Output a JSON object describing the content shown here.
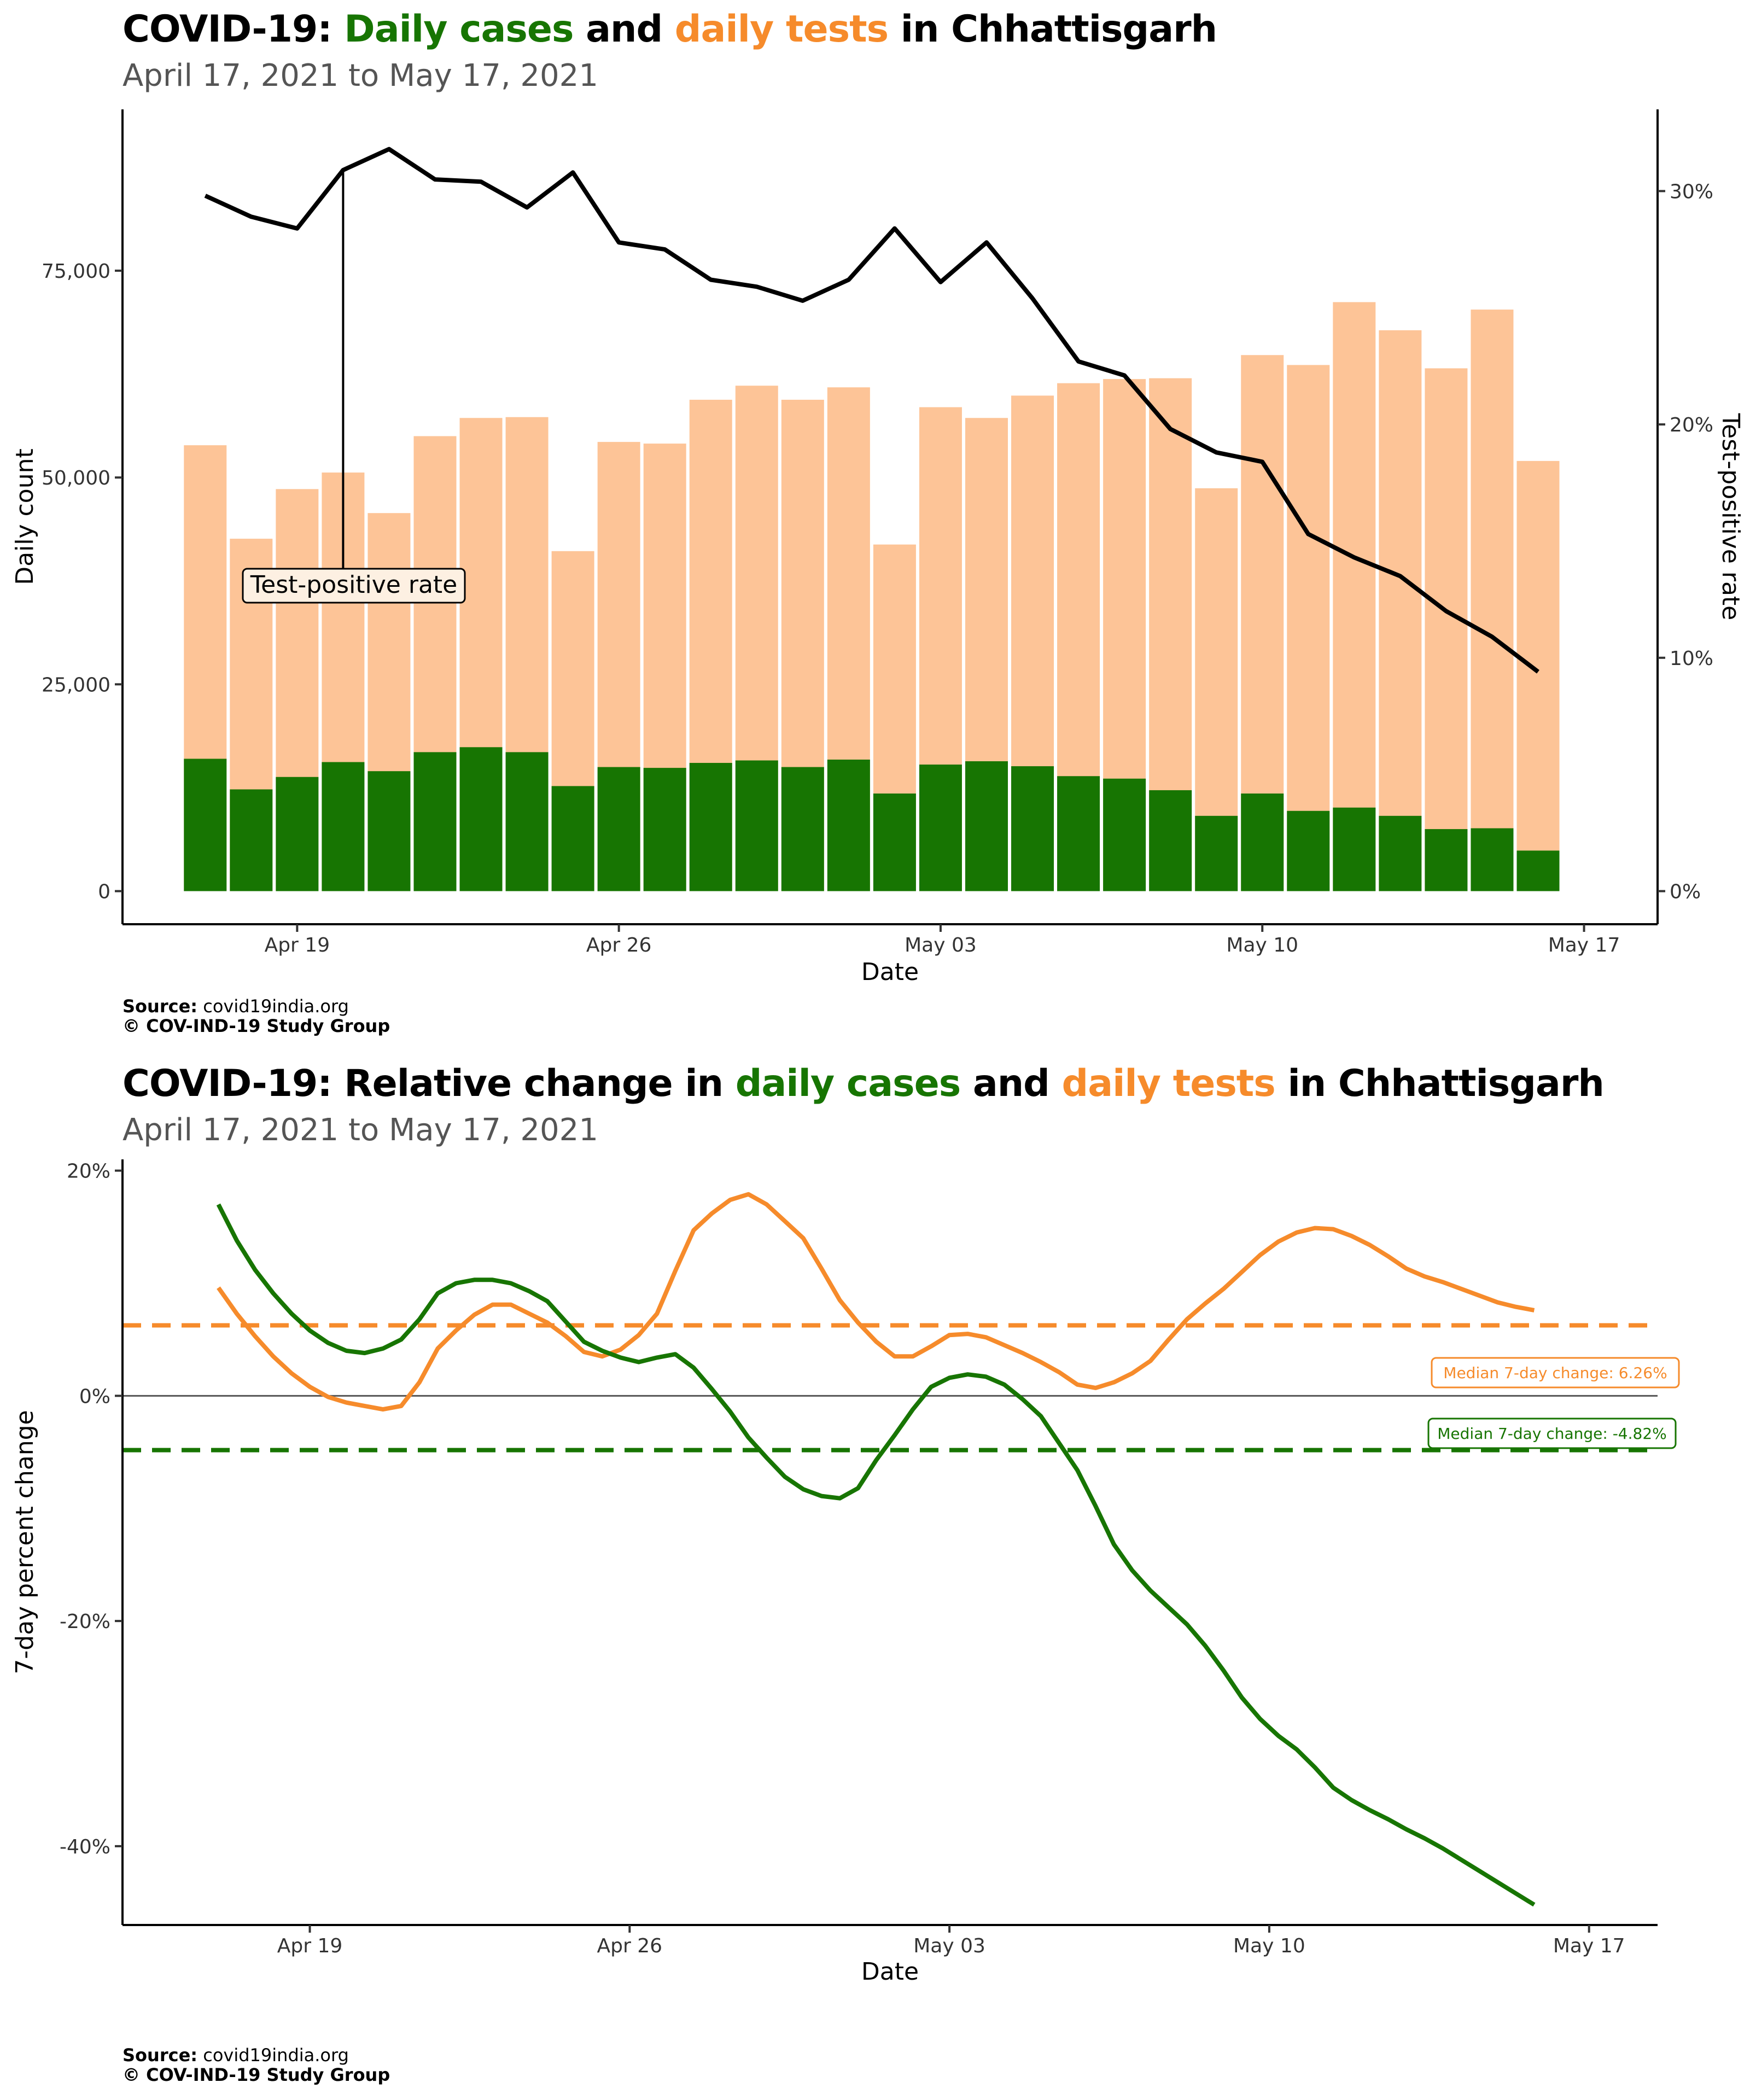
{
  "colors": {
    "cases": "#177502",
    "tests": "#F68B2B",
    "tests_bar": "#FDC497",
    "tpr_line": "#000000"
  },
  "panel1": {
    "title_prefix": "COVID-19: ",
    "title_cases": "Daily cases",
    "title_and": " and ",
    "title_tests": "daily tests",
    "title_suffix": " in Chhattisgarh",
    "subtitle": "April 17, 2021 to May 17, 2021",
    "source_label": "Source:",
    "source_value": " covid19india.org",
    "copyright": "© COV-IND-19 Study Group"
  },
  "panel2": {
    "title_prefix": "COVID-19: Relative change in ",
    "title_cases": "daily cases",
    "title_and": " and ",
    "title_tests": "daily tests",
    "title_suffix": " in Chhattisgarh",
    "subtitle": "April 17, 2021 to May 17, 2021",
    "source_label": "Source:",
    "source_value": " covid19india.org",
    "copyright": "© COV-IND-19 Study Group"
  },
  "chart_data": [
    {
      "type": "bar",
      "xlabel": "Date",
      "ylabel": "Daily count",
      "y2label": "Test-positive rate",
      "ylim": [
        -4000,
        94500
      ],
      "y_ticks": [
        0,
        25000,
        50000,
        75000
      ],
      "y_tick_labels": [
        "0",
        "25,000",
        "50,000",
        "75,000"
      ],
      "y2_ticks": [
        0,
        10,
        20,
        30
      ],
      "y2_tick_labels": [
        "0%",
        "10%",
        "20%",
        "30%"
      ],
      "x_ticks": [
        "2021-04-19",
        "2021-04-26",
        "2021-05-03",
        "2021-05-10",
        "2021-05-17"
      ],
      "x_tick_labels": [
        "Apr 19",
        "Apr 26",
        "May 03",
        "May 10",
        "May 17"
      ],
      "dates": [
        "2021-04-17",
        "2021-04-18",
        "2021-04-19",
        "2021-04-20",
        "2021-04-21",
        "2021-04-22",
        "2021-04-23",
        "2021-04-24",
        "2021-04-25",
        "2021-04-26",
        "2021-04-27",
        "2021-04-28",
        "2021-04-29",
        "2021-04-30",
        "2021-05-01",
        "2021-05-02",
        "2021-05-03",
        "2021-05-04",
        "2021-05-05",
        "2021-05-06",
        "2021-05-07",
        "2021-05-08",
        "2021-05-09",
        "2021-05-10",
        "2021-05-11",
        "2021-05-12",
        "2021-05-13",
        "2021-05-14",
        "2021-05-15",
        "2021-05-16",
        "2021-05-17"
      ],
      "series": [
        {
          "name": "Daily tests",
          "values": [
            53900,
            42600,
            48600,
            50600,
            45700,
            55000,
            57200,
            57300,
            41100,
            54300,
            54100,
            59400,
            61100,
            59400,
            60900,
            41900,
            58500,
            57200,
            59900,
            61400,
            61900,
            62000,
            48700,
            64800,
            63600,
            71200,
            67800,
            63200,
            70300,
            52000,
            null
          ]
        },
        {
          "name": "Daily cases",
          "values": [
            16000,
            12300,
            13800,
            15600,
            14500,
            16800,
            17400,
            16800,
            12700,
            15000,
            14900,
            15500,
            15800,
            15000,
            15900,
            11800,
            15300,
            15700,
            15100,
            13900,
            13600,
            12200,
            9100,
            11800,
            9700,
            10100,
            9100,
            7500,
            7600,
            4900,
            null
          ]
        },
        {
          "name": "Test-positive rate",
          "values": [
            29.8,
            28.9,
            28.4,
            30.9,
            31.8,
            30.5,
            30.4,
            29.3,
            30.8,
            27.8,
            27.5,
            26.2,
            25.9,
            25.3,
            26.2,
            28.4,
            26.1,
            27.8,
            25.4,
            22.7,
            22.1,
            19.8,
            18.8,
            18.4,
            15.3,
            14.3,
            13.5,
            12.0,
            10.9,
            9.4,
            null
          ]
        }
      ],
      "annotation": "Test-positive rate",
      "annotation_date": "2021-04-20"
    },
    {
      "type": "line",
      "xlabel": "Date",
      "ylabel": "7-day percent change",
      "ylim": [
        -47,
        21
      ],
      "y_ticks": [
        -40,
        -20,
        0,
        20
      ],
      "y_tick_labels": [
        "-40%",
        "-20%",
        "0%",
        "20%"
      ],
      "x_ticks": [
        "2021-04-19",
        "2021-04-26",
        "2021-05-03",
        "2021-05-10",
        "2021-05-17"
      ],
      "x_tick_labels": [
        "Apr 19",
        "Apr 26",
        "May 03",
        "May 10",
        "May 17"
      ],
      "series": [
        {
          "name": "Daily tests",
          "points": [
            [
              "2021-04-17",
              9.6
            ],
            [
              "2021-04-17.4",
              7.3
            ],
            [
              "2021-04-17.8",
              5.3
            ],
            [
              "2021-04-18.2",
              3.5
            ],
            [
              "2021-04-18.6",
              2.0
            ],
            [
              "2021-04-19",
              0.8
            ],
            [
              "2021-04-19.4",
              -0.1
            ],
            [
              "2021-04-19.8",
              -0.6
            ],
            [
              "2021-04-20.2",
              -0.9
            ],
            [
              "2021-04-20.6",
              -1.2
            ],
            [
              "2021-04-21",
              -0.9
            ],
            [
              "2021-04-21.4",
              1.2
            ],
            [
              "2021-04-21.8",
              4.2
            ],
            [
              "2021-04-22.2",
              5.8
            ],
            [
              "2021-04-22.6",
              7.2
            ],
            [
              "2021-04-23",
              8.1
            ],
            [
              "2021-04-23.4",
              8.1
            ],
            [
              "2021-04-23.8",
              7.3
            ],
            [
              "2021-04-24.2",
              6.5
            ],
            [
              "2021-04-24.6",
              5.3
            ],
            [
              "2021-04-25",
              3.9
            ],
            [
              "2021-04-25.4",
              3.5
            ],
            [
              "2021-04-25.8",
              4.1
            ],
            [
              "2021-04-26.2",
              5.4
            ],
            [
              "2021-04-26.6",
              7.3
            ],
            [
              "2021-04-27",
              11.1
            ],
            [
              "2021-04-27.4",
              14.7
            ],
            [
              "2021-04-27.8",
              16.2
            ],
            [
              "2021-04-28.2",
              17.4
            ],
            [
              "2021-04-28.6",
              17.9
            ],
            [
              "2021-04-29",
              17.0
            ],
            [
              "2021-04-29.4",
              15.5
            ],
            [
              "2021-04-29.8",
              14.0
            ],
            [
              "2021-04-30.2",
              11.3
            ],
            [
              "2021-04-30.6",
              8.5
            ],
            [
              "2021-05-01",
              6.5
            ],
            [
              "2021-05-01.4",
              4.8
            ],
            [
              "2021-05-01.8",
              3.5
            ],
            [
              "2021-05-02.2",
              3.5
            ],
            [
              "2021-05-02.6",
              4.4
            ],
            [
              "2021-05-03",
              5.4
            ],
            [
              "2021-05-03.4",
              5.5
            ],
            [
              "2021-05-03.8",
              5.2
            ],
            [
              "2021-05-04.2",
              4.5
            ],
            [
              "2021-05-04.6",
              3.8
            ],
            [
              "2021-05-05",
              3.0
            ],
            [
              "2021-05-05.4",
              2.1
            ],
            [
              "2021-05-05.8",
              1.0
            ],
            [
              "2021-05-06.2",
              0.7
            ],
            [
              "2021-05-06.6",
              1.2
            ],
            [
              "2021-05-07",
              2.0
            ],
            [
              "2021-05-07.4",
              3.1
            ],
            [
              "2021-05-07.8",
              5.0
            ],
            [
              "2021-05-08.2",
              6.8
            ],
            [
              "2021-05-08.6",
              8.2
            ],
            [
              "2021-05-09",
              9.5
            ],
            [
              "2021-05-09.4",
              11.0
            ],
            [
              "2021-05-09.8",
              12.5
            ],
            [
              "2021-05-10.2",
              13.7
            ],
            [
              "2021-05-10.6",
              14.5
            ],
            [
              "2021-05-11",
              14.9
            ],
            [
              "2021-05-11.4",
              14.8
            ],
            [
              "2021-05-11.8",
              14.2
            ],
            [
              "2021-05-12.2",
              13.4
            ],
            [
              "2021-05-12.6",
              12.4
            ],
            [
              "2021-05-13",
              11.3
            ],
            [
              "2021-05-13.4",
              10.6
            ],
            [
              "2021-05-13.8",
              10.1
            ],
            [
              "2021-05-14.2",
              9.5
            ],
            [
              "2021-05-14.6",
              8.9
            ],
            [
              "2021-05-15",
              8.3
            ],
            [
              "2021-05-15.4",
              7.9
            ],
            [
              "2021-05-15.8",
              7.6
            ]
          ]
        },
        {
          "name": "Daily cases",
          "points": [
            [
              "2021-04-17",
              17.0
            ],
            [
              "2021-04-17.4",
              13.8
            ],
            [
              "2021-04-17.8",
              11.2
            ],
            [
              "2021-04-18.2",
              9.1
            ],
            [
              "2021-04-18.6",
              7.3
            ],
            [
              "2021-04-19",
              5.8
            ],
            [
              "2021-04-19.4",
              4.7
            ],
            [
              "2021-04-19.8",
              4.0
            ],
            [
              "2021-04-20.2",
              3.8
            ],
            [
              "2021-04-20.6",
              4.2
            ],
            [
              "2021-04-21",
              5.0
            ],
            [
              "2021-04-21.4",
              6.8
            ],
            [
              "2021-04-21.8",
              9.1
            ],
            [
              "2021-04-22.2",
              10.0
            ],
            [
              "2021-04-22.6",
              10.3
            ],
            [
              "2021-04-23",
              10.3
            ],
            [
              "2021-04-23.4",
              10.0
            ],
            [
              "2021-04-23.8",
              9.3
            ],
            [
              "2021-04-24.2",
              8.4
            ],
            [
              "2021-04-24.6",
              6.6
            ],
            [
              "2021-04-25",
              4.8
            ],
            [
              "2021-04-25.4",
              4.0
            ],
            [
              "2021-04-25.8",
              3.4
            ],
            [
              "2021-04-26.2",
              3.0
            ],
            [
              "2021-04-26.6",
              3.4
            ],
            [
              "2021-04-27",
              3.7
            ],
            [
              "2021-04-27.4",
              2.5
            ],
            [
              "2021-04-27.8",
              0.6
            ],
            [
              "2021-04-28.2",
              -1.4
            ],
            [
              "2021-04-28.6",
              -3.7
            ],
            [
              "2021-04-29",
              -5.5
            ],
            [
              "2021-04-29.4",
              -7.2
            ],
            [
              "2021-04-29.8",
              -8.3
            ],
            [
              "2021-04-30.2",
              -8.9
            ],
            [
              "2021-04-30.6",
              -9.1
            ],
            [
              "2021-05-01",
              -8.2
            ],
            [
              "2021-05-01.4",
              -5.7
            ],
            [
              "2021-05-01.8",
              -3.5
            ],
            [
              "2021-05-02.2",
              -1.2
            ],
            [
              "2021-05-02.6",
              0.8
            ],
            [
              "2021-05-03",
              1.6
            ],
            [
              "2021-05-03.4",
              1.9
            ],
            [
              "2021-05-03.8",
              1.7
            ],
            [
              "2021-05-04.2",
              1.0
            ],
            [
              "2021-05-04.6",
              -0.3
            ],
            [
              "2021-05-05",
              -1.8
            ],
            [
              "2021-05-05.4",
              -4.2
            ],
            [
              "2021-05-05.8",
              -6.6
            ],
            [
              "2021-05-06.2",
              -9.8
            ],
            [
              "2021-05-06.6",
              -13.2
            ],
            [
              "2021-05-07",
              -15.5
            ],
            [
              "2021-05-07.4",
              -17.3
            ],
            [
              "2021-05-07.8",
              -18.8
            ],
            [
              "2021-05-08.2",
              -20.3
            ],
            [
              "2021-05-08.6",
              -22.2
            ],
            [
              "2021-05-09",
              -24.4
            ],
            [
              "2021-05-09.4",
              -26.8
            ],
            [
              "2021-05-09.8",
              -28.7
            ],
            [
              "2021-05-10.2",
              -30.2
            ],
            [
              "2021-05-10.6",
              -31.4
            ],
            [
              "2021-05-11",
              -33.0
            ],
            [
              "2021-05-11.4",
              -34.8
            ],
            [
              "2021-05-11.8",
              -35.9
            ],
            [
              "2021-05-12.2",
              -36.8
            ],
            [
              "2021-05-12.6",
              -37.6
            ],
            [
              "2021-05-13",
              -38.5
            ],
            [
              "2021-05-13.4",
              -39.3
            ],
            [
              "2021-05-13.8",
              -40.2
            ],
            [
              "2021-05-14.2",
              -41.2
            ],
            [
              "2021-05-14.6",
              -42.2
            ],
            [
              "2021-05-15",
              -43.2
            ],
            [
              "2021-05-15.4",
              -44.2
            ],
            [
              "2021-05-15.8",
              -45.2
            ]
          ]
        }
      ],
      "reference_lines": [
        {
          "series": "Daily tests",
          "value": 6.26,
          "label": "Median 7-day change: 6.26%"
        },
        {
          "series": "Daily cases",
          "value": -4.82,
          "label": "Median 7-day change: -4.82%"
        }
      ],
      "zero_line": true
    }
  ]
}
